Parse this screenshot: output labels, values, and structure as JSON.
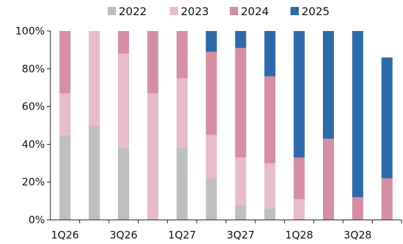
{
  "chart_data": {
    "type": "bar",
    "stacked": true,
    "categories": [
      "1Q26",
      "2Q26",
      "3Q26",
      "4Q26",
      "1Q27",
      "2Q27",
      "3Q27",
      "4Q27",
      "1Q28",
      "2Q28",
      "3Q28",
      "4Q28"
    ],
    "x_tick_labels": [
      "1Q26",
      "3Q26",
      "1Q27",
      "3Q27",
      "1Q28",
      "3Q28"
    ],
    "y_tick_labels": [
      "0%",
      "20%",
      "40%",
      "60%",
      "80%",
      "100%"
    ],
    "ylim": [
      0,
      100
    ],
    "y_unit": "%",
    "grid": false,
    "legend_position": "top",
    "series": [
      {
        "name": "2022",
        "color": "#bfbfbf",
        "values": [
          45,
          50,
          38,
          0,
          38,
          22,
          8,
          6,
          0,
          0,
          0,
          0
        ]
      },
      {
        "name": "2023",
        "color": "#e6bccb",
        "values": [
          22,
          50,
          50,
          67,
          37,
          23,
          25,
          24,
          11,
          0,
          0,
          0
        ]
      },
      {
        "name": "2024",
        "color": "#d48fa4",
        "values": [
          33,
          0,
          12,
          33,
          25,
          44,
          58,
          46,
          22,
          43,
          12,
          22
        ]
      },
      {
        "name": "2025",
        "color": "#2e6aa8",
        "values": [
          0,
          0,
          0,
          0,
          0,
          11,
          9,
          24,
          67,
          57,
          88,
          64
        ]
      }
    ]
  }
}
